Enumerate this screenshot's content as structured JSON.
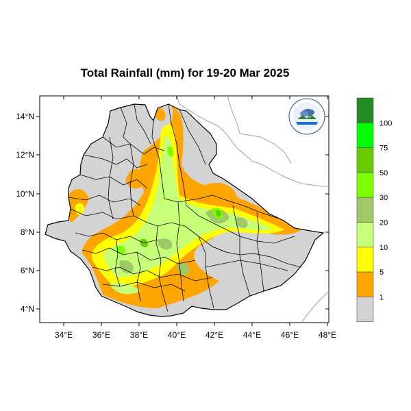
{
  "title": "Total Rainfall (mm) for 19-20 Mar 2025",
  "colors": {
    "land_gray": "#d3d3d3",
    "orange": "#ffa500",
    "yellow": "#ffff00",
    "light_green": "#c8ff78",
    "sage": "#a0c866",
    "lime": "#7dff00",
    "yellow_green": "#66cc00",
    "bright_green": "#00ff00",
    "dark_green": "#228b22"
  },
  "axes": {
    "x_ticks": [
      "34°E",
      "36°E",
      "38°E",
      "40°E",
      "42°E",
      "44°E",
      "46°E",
      "48°E"
    ],
    "y_ticks": [
      "14°N",
      "12°N",
      "10°N",
      "8°N",
      "6°N",
      "4°N"
    ]
  },
  "colorbar": {
    "labels": [
      "1",
      "5",
      "10",
      "20",
      "30",
      "50",
      "75",
      "100"
    ],
    "colors": [
      "#d3d3d3",
      "#ffa500",
      "#ffff00",
      "#c8ff78",
      "#a0c866",
      "#7dff00",
      "#66cc00",
      "#00ff00",
      "#228b22"
    ]
  },
  "logo": {
    "name": "ethiopia-meteorology-logo"
  }
}
